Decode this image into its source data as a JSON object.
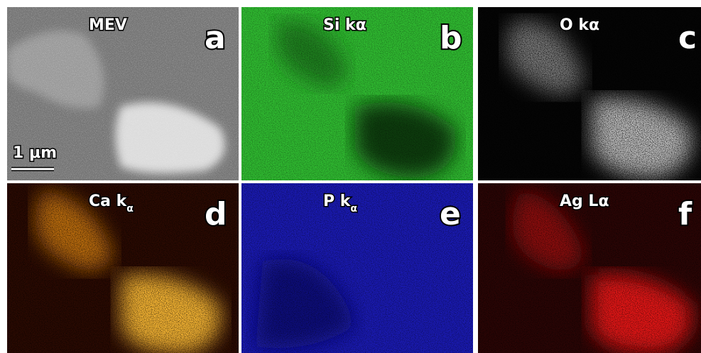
{
  "panels": [
    {
      "title": "MEV",
      "letter": "a"
    },
    {
      "title": "Si kα",
      "letter": "b"
    },
    {
      "title": "O kα",
      "letter": "c"
    },
    {
      "title": "Ca k",
      "subscript": "α",
      "letter": "d"
    },
    {
      "title": "P k",
      "subscript": "α",
      "letter": "e"
    },
    {
      "title": "Ag Lα",
      "letter": "f"
    }
  ],
  "scale_bar": "1 μm"
}
